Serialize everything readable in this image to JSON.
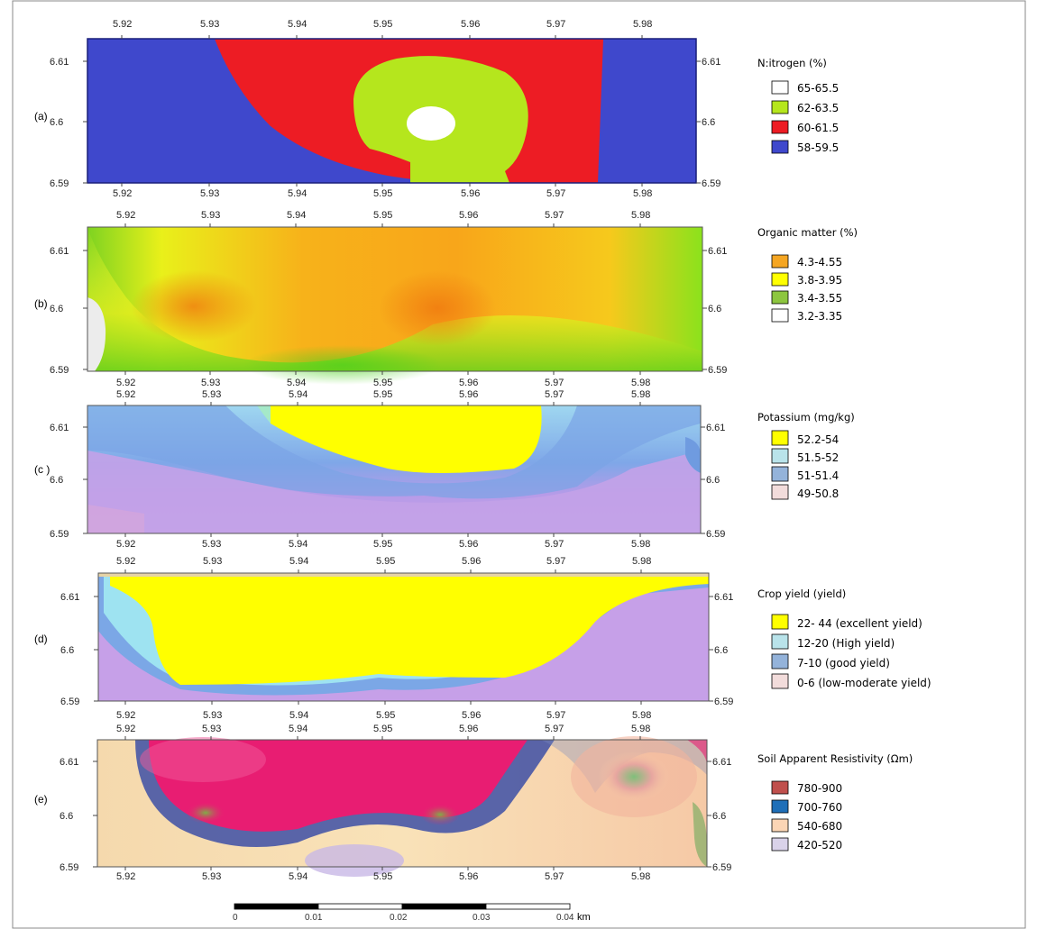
{
  "panels": [
    {
      "id": "a",
      "panel_label": "(a)",
      "x_ticks_top": [
        "5.92",
        "5.93",
        "5.94",
        "5.95",
        "5.96",
        "5.97",
        "5.98"
      ],
      "x_ticks_bottom": [
        "5.92",
        "5.93",
        "5.94",
        "5.95",
        "5.96",
        "5.97",
        "5.98"
      ],
      "y_ticks_left": [
        "6.61",
        "6.6",
        "6.59"
      ],
      "y_ticks_right": [
        "6.61",
        "6.6",
        "6.59"
      ],
      "legend": {
        "title": "N:itrogen (%)",
        "items": [
          {
            "label": "65-65.5",
            "color": "#ffffff"
          },
          {
            "label": "62-63.5",
            "color": "#b5e61d"
          },
          {
            "label": "60-61.5",
            "color": "#ed1c24"
          },
          {
            "label": "58-59.5",
            "color": "#3f48cc"
          }
        ]
      }
    },
    {
      "id": "b",
      "panel_label": "(b)",
      "x_ticks_top": [
        "5.92",
        "5.93",
        "5.94",
        "5.95",
        "5.96",
        "5.97",
        "5.98"
      ],
      "x_ticks_bottom": [
        "5.92",
        "5.93",
        "5.94",
        "5.95",
        "5.96",
        "5.97",
        "5.98"
      ],
      "y_ticks_left": [
        "6.61",
        "6.6",
        "6.59"
      ],
      "y_ticks_right": [
        "6.61",
        "6.6",
        "6.59"
      ],
      "legend": {
        "title": "Organic matter (%)",
        "items": [
          {
            "label": "4.3-4.55",
            "color": "#f5a623"
          },
          {
            "label": "3.8-3.95",
            "color": "#ffff00"
          },
          {
            "label": "3.4-3.55",
            "color": "#8dc63f"
          },
          {
            "label": "3.2-3.35",
            "color": "#ffffff"
          }
        ]
      }
    },
    {
      "id": "c",
      "panel_label": "(c )",
      "x_ticks_top": [
        "5.92",
        "5.93",
        "5.94",
        "5.95",
        "5.96",
        "5.97",
        "5.98"
      ],
      "x_ticks_bottom": [
        "5.92",
        "5.93",
        "5.94",
        "5.95",
        "5.96",
        "5.97",
        "5.98"
      ],
      "y_ticks_left": [
        "6.61",
        "6.6",
        "6.59"
      ],
      "y_ticks_right": [
        "6.61",
        "6.6",
        "6.59"
      ],
      "legend": {
        "title": "Potassium (mg/kg)",
        "items": [
          {
            "label": "52.2-54",
            "color": "#ffff00"
          },
          {
            "label": "51.5-52",
            "color": "#b9e3ea"
          },
          {
            "label": "51-51.4",
            "color": "#94b3da"
          },
          {
            "label": "49-50.8",
            "color": "#f2dcdb"
          }
        ]
      }
    },
    {
      "id": "d",
      "panel_label": "(d)",
      "x_ticks_top": [
        "5.92",
        "5.93",
        "5.94",
        "5.95",
        "5.96",
        "5.97",
        "5.98"
      ],
      "x_ticks_bottom": [
        "5.92",
        "5.93",
        "5.94",
        "5.95",
        "5.96",
        "5.97",
        "5.98"
      ],
      "y_ticks_left": [
        "6.61",
        "6.6",
        "6.59"
      ],
      "y_ticks_right": [
        "6.61",
        "6.6",
        "6.59"
      ],
      "legend": {
        "title": "Crop yield (yield)",
        "items": [
          {
            "label": "22- 44 (excellent yield)",
            "color": "#ffff00"
          },
          {
            "label": "12-20 (High yield)",
            "color": "#b9e3ea"
          },
          {
            "label": "7-10 (good yield)",
            "color": "#94b3da"
          },
          {
            "label": "0-6  (low-moderate yield)",
            "color": "#f2dcdb"
          }
        ]
      }
    },
    {
      "id": "e",
      "panel_label": "(e)",
      "x_ticks_top": [
        "5.92",
        "5.93",
        "5.94",
        "5.95",
        "5.96",
        "5.97",
        "5.98"
      ],
      "x_ticks_bottom": [
        "5.92",
        "5.93",
        "5.94",
        "5.95",
        "5.96",
        "5.97",
        "5.98"
      ],
      "y_ticks_left": [
        "6.61",
        "6.6",
        "6.59"
      ],
      "y_ticks_right": [
        "6.61",
        "6.6",
        "6.59"
      ],
      "legend": {
        "title": "Soil Apparent Resistivity (Ωm)",
        "items": [
          {
            "label": "780-900",
            "color": "#c0504d"
          },
          {
            "label": "700-760",
            "color": "#1f6fb8"
          },
          {
            "label": "540-680",
            "color": "#fbd5b5"
          },
          {
            "label": "420-520",
            "color": "#d9d2e9"
          }
        ]
      }
    }
  ],
  "scale_bar": {
    "ticks": [
      "0",
      "0.01",
      "0.02",
      "0.03",
      "0.04"
    ],
    "unit": "km"
  }
}
